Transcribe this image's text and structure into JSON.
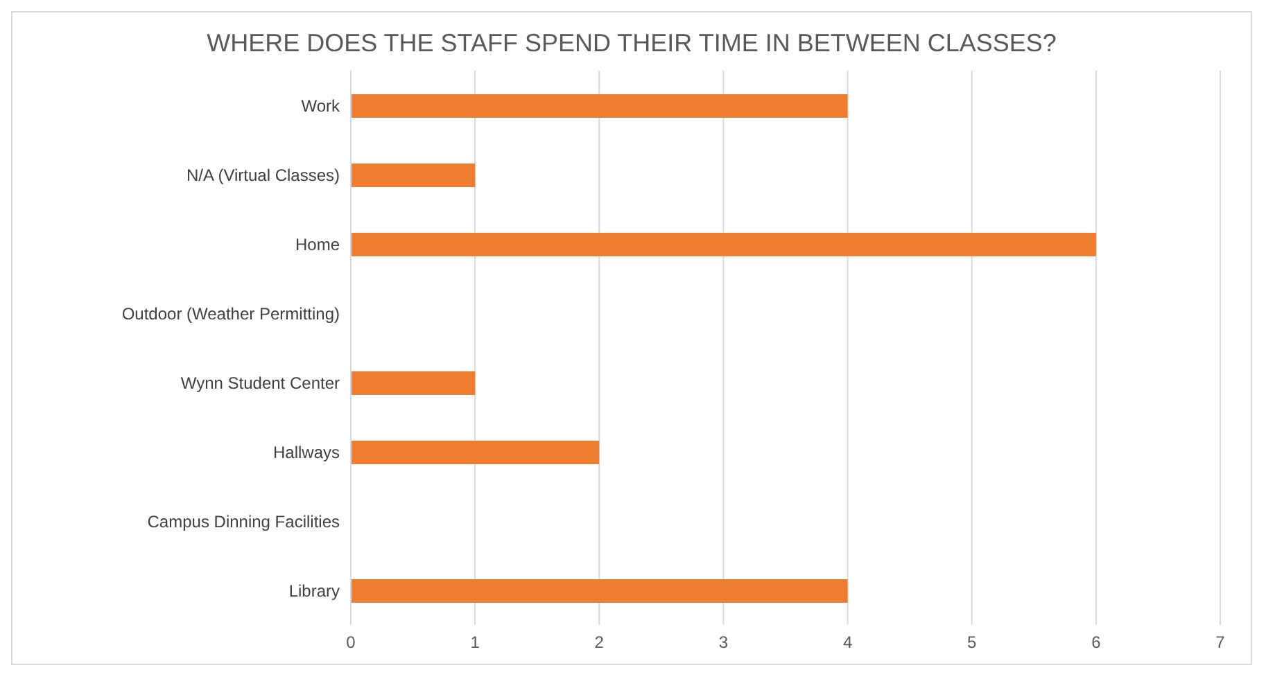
{
  "chart_data": {
    "type": "bar",
    "orientation": "horizontal",
    "title": "WHERE DOES THE STAFF SPEND THEIR TIME IN BETWEEN CLASSES?",
    "categories": [
      "Work",
      "N/A (Virtual Classes)",
      "Home",
      "Outdoor (Weather Permitting)",
      "Wynn Student Center",
      "Hallways",
      "Campus Dinning Facilities",
      "Library"
    ],
    "values": [
      4,
      1,
      6,
      0,
      1,
      2,
      0,
      4
    ],
    "color": "#ed7d31",
    "xlim": [
      0,
      7
    ],
    "xticks": [
      0,
      1,
      2,
      3,
      4,
      5,
      6,
      7
    ],
    "grid": "x"
  }
}
